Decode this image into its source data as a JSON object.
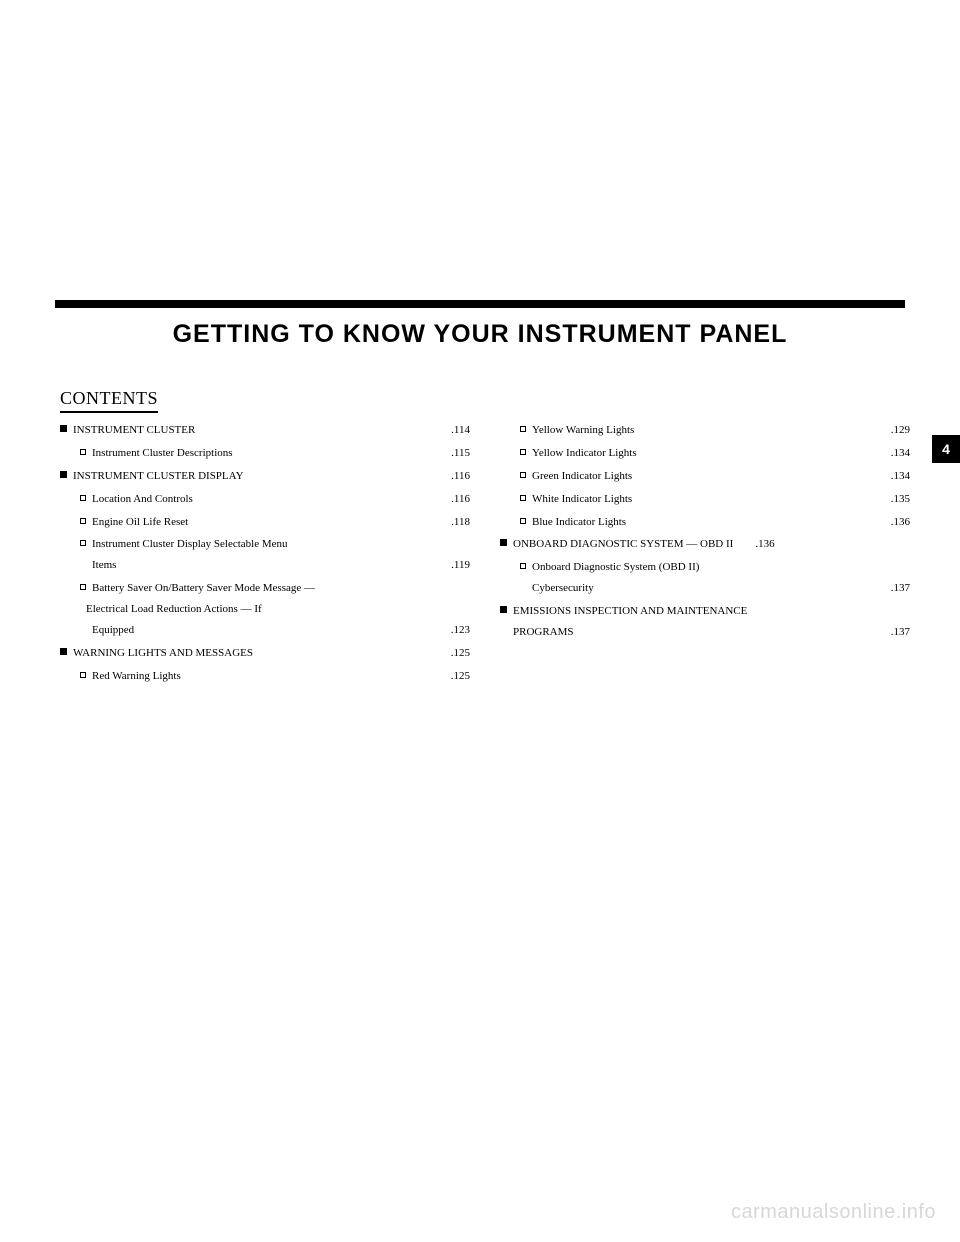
{
  "title": "GETTING TO KNOW YOUR INSTRUMENT PANEL",
  "contents_label": "CONTENTS",
  "tab_number": "4",
  "watermark": "carmanualsonline.info",
  "left": [
    {
      "level": 0,
      "label": "INSTRUMENT CLUSTER",
      "page": ".114"
    },
    {
      "level": 1,
      "label": "Instrument Cluster Descriptions",
      "page": ".115"
    },
    {
      "level": 0,
      "label": "INSTRUMENT CLUSTER DISPLAY",
      "page": ".116"
    },
    {
      "level": 1,
      "label": "Location And Controls",
      "page": ".116"
    },
    {
      "level": 1,
      "label": "Engine Oil Life Reset",
      "page": ".118"
    },
    {
      "level": 1,
      "lines": [
        "Instrument Cluster Display Selectable Menu",
        "Items"
      ],
      "page": ".119"
    },
    {
      "level": 1,
      "lines": [
        "Battery Saver On/Battery Saver Mode Message —",
        "Electrical Load Reduction Actions — If",
        "Equipped"
      ],
      "page": ".123"
    },
    {
      "level": 0,
      "label": "WARNING LIGHTS AND MESSAGES",
      "page": ".125"
    },
    {
      "level": 1,
      "label": "Red Warning Lights",
      "page": ".125"
    }
  ],
  "right": [
    {
      "level": 1,
      "label": "Yellow Warning Lights",
      "page": ".129"
    },
    {
      "level": 1,
      "label": "Yellow Indicator Lights",
      "page": ".134"
    },
    {
      "level": 1,
      "label": "Green Indicator Lights",
      "page": ".134"
    },
    {
      "level": 1,
      "label": "White Indicator Lights",
      "page": ".135"
    },
    {
      "level": 1,
      "label": "Blue Indicator Lights",
      "page": ".136"
    },
    {
      "level": 0,
      "label": "ONBOARD DIAGNOSTIC SYSTEM — OBD II",
      "page": ".136",
      "tight": true
    },
    {
      "level": 1,
      "lines": [
        "Onboard Diagnostic System (OBD II)",
        "Cybersecurity"
      ],
      "page": ".137"
    },
    {
      "level": 0,
      "lines": [
        "EMISSIONS INSPECTION AND MAINTENANCE",
        "PROGRAMS"
      ],
      "page": ".137"
    }
  ]
}
